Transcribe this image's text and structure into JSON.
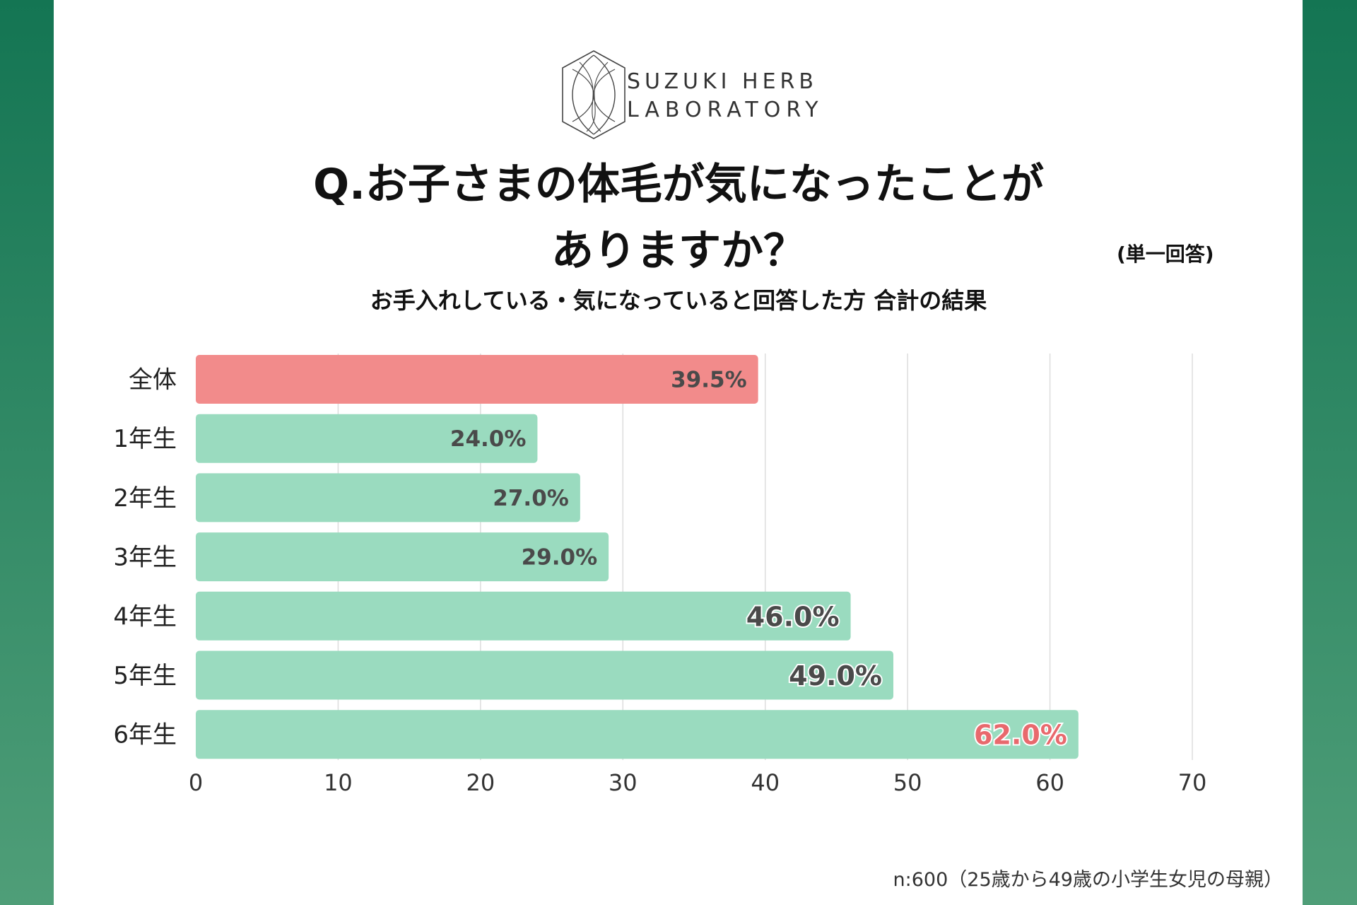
{
  "brand": {
    "line1": "SUZUKI HERB",
    "line2": "LABORATORY"
  },
  "title": {
    "line1": "Q.お子さまの体毛が気になったことが",
    "line2": "ありますか？"
  },
  "answer_type": "(単一回答)",
  "subtitle": "お手入れしている・気になっていると回答した方 合計の結果",
  "note": "n:600（25歳から49歳の小学生女児の母親）",
  "colors": {
    "background": "#147553",
    "total_bar": "#f28b8b",
    "grade_bar": "#9adbbf",
    "label_dark": "#4a4a4a",
    "label_highlight": "#e8696d",
    "grid": "#dddddd"
  },
  "chart_data": {
    "type": "bar",
    "orientation": "horizontal",
    "categories": [
      "全体",
      "1年生",
      "2年生",
      "3年生",
      "4年生",
      "5年生",
      "6年生"
    ],
    "values": [
      39.5,
      24.0,
      27.0,
      29.0,
      46.0,
      49.0,
      62.0
    ],
    "value_labels": [
      "39.5%",
      "24.0%",
      "27.0%",
      "29.0%",
      "46.0%",
      "49.0%",
      "62.0%"
    ],
    "xlim": [
      0,
      70
    ],
    "xticks": [
      0,
      10,
      20,
      30,
      40,
      50,
      60,
      70
    ],
    "grid": true,
    "highlight_category": "6年生"
  }
}
